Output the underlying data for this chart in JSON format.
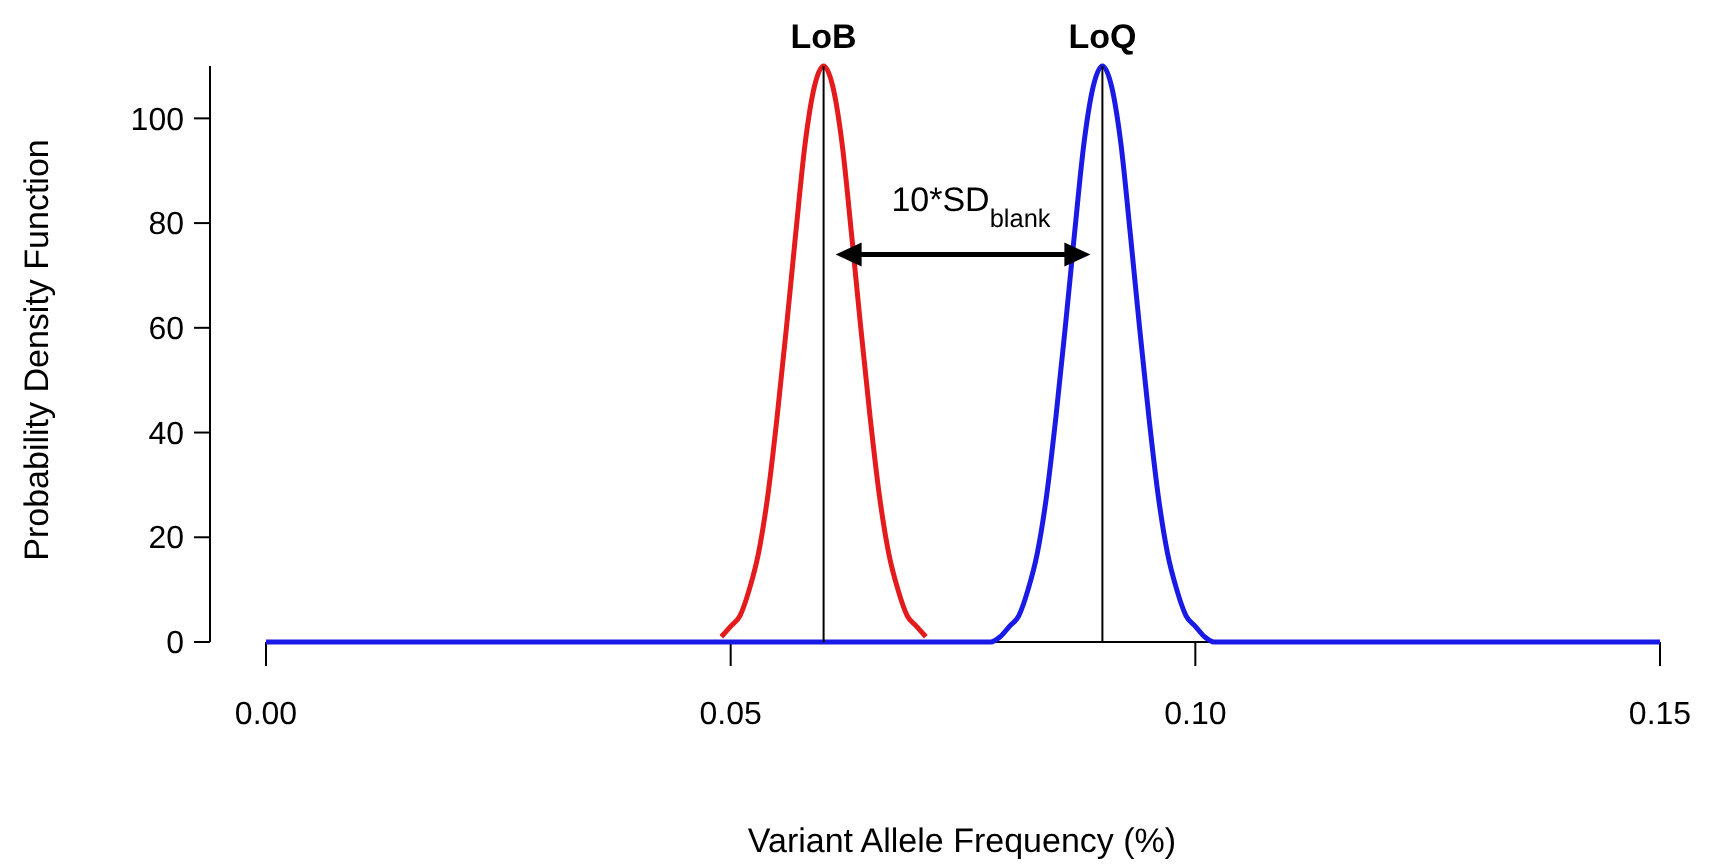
{
  "chart_data": {
    "type": "line",
    "xlabel": "Variant Allele Frequency (%)",
    "ylabel": "Probability Density Function",
    "xlim": [
      0,
      0.15
    ],
    "ylim": [
      0,
      110
    ],
    "xticks": [
      {
        "value": 0,
        "label": "0.00"
      },
      {
        "value": 0.05,
        "label": "0.05"
      },
      {
        "value": 0.1,
        "label": "0.10"
      },
      {
        "value": 0.15,
        "label": "0.15"
      }
    ],
    "yticks": [
      0,
      20,
      40,
      60,
      80,
      100
    ],
    "grid": false,
    "marker": "none",
    "line_style": "solid",
    "series": [
      {
        "color": "#e41a1c",
        "x": [
          0.049,
          0.05,
          0.051,
          0.052,
          0.053,
          0.054,
          0.055,
          0.056,
          0.057,
          0.058,
          0.059,
          0.06,
          0.061,
          0.062,
          0.063,
          0.064,
          0.065,
          0.066,
          0.067,
          0.068,
          0.069,
          0.07,
          0.071
        ],
        "values": [
          1,
          3,
          5,
          10,
          17,
          28,
          43,
          60,
          78,
          95,
          106,
          110,
          106,
          95,
          78,
          60,
          43,
          28,
          17,
          10,
          5,
          3,
          1
        ]
      },
      {
        "color": "#1a1ae6",
        "x": [
          0,
          0.076,
          0.077,
          0.078,
          0.079,
          0.08,
          0.081,
          0.082,
          0.083,
          0.084,
          0.085,
          0.086,
          0.087,
          0.088,
          0.089,
          0.09,
          0.091,
          0.092,
          0.093,
          0.094,
          0.095,
          0.096,
          0.097,
          0.098,
          0.099,
          0.1,
          0.101,
          0.102,
          0.103,
          0.104,
          0.15
        ],
        "values": [
          0,
          0,
          0,
          0,
          1,
          3,
          5,
          10,
          17,
          28,
          43,
          60,
          78,
          95,
          106,
          110,
          106,
          95,
          78,
          60,
          43,
          28,
          17,
          10,
          5,
          3,
          1,
          0,
          0,
          0,
          0
        ]
      }
    ],
    "ref_lines": [
      {
        "axis": "x",
        "value": 0.06,
        "label": "LoB",
        "color": "#000000"
      },
      {
        "axis": "x",
        "value": 0.09,
        "label": "LoQ",
        "color": "#000000"
      }
    ],
    "annotations": [
      {
        "text": "10*SD$_{blank}$",
        "x": 0.06,
        "y": 74
      }
    ]
  }
}
